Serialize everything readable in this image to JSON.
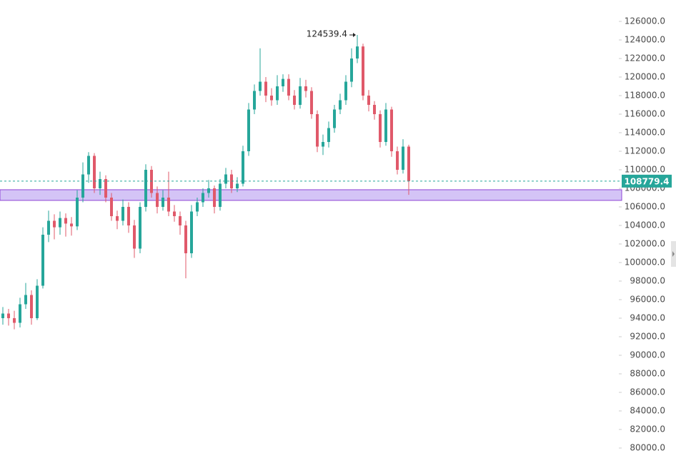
{
  "chart_data": {
    "type": "candlestick",
    "up_color": "#26a69a",
    "down_color": "#e0596a",
    "ylim": [
      78385,
      128308
    ],
    "yticks": [
      {
        "value": 126000,
        "label": "126000.0"
      },
      {
        "value": 124000,
        "label": "124000.0"
      },
      {
        "value": 122000,
        "label": "122000.0"
      },
      {
        "value": 120000,
        "label": "120000.0"
      },
      {
        "value": 118000,
        "label": "118000.0"
      },
      {
        "value": 116000,
        "label": "116000.0"
      },
      {
        "value": 114000,
        "label": "114000.0"
      },
      {
        "value": 112000,
        "label": "112000.0"
      },
      {
        "value": 110000,
        "label": "110000.0"
      },
      {
        "value": 108000,
        "label": "108000.0"
      },
      {
        "value": 106000,
        "label": "106000.0"
      },
      {
        "value": 104000,
        "label": "104000.0"
      },
      {
        "value": 102000,
        "label": "102000.0"
      },
      {
        "value": 100000,
        "label": "100000.0"
      },
      {
        "value": 98000,
        "label": "98000.0"
      },
      {
        "value": 96000,
        "label": "96000.0"
      },
      {
        "value": 94000,
        "label": "94000.0"
      },
      {
        "value": 92000,
        "label": "92000.0"
      },
      {
        "value": 90000,
        "label": "90000.0"
      },
      {
        "value": 88000,
        "label": "88000.0"
      },
      {
        "value": 86000,
        "label": "86000.0"
      },
      {
        "value": 84000,
        "label": "84000.0"
      },
      {
        "value": 82000,
        "label": "82000.0"
      },
      {
        "value": 80000,
        "label": "80000.0"
      }
    ],
    "zones": [
      {
        "low": 106700,
        "high": 107850,
        "color": "#d4c4f6",
        "border": "#8e44d6"
      }
    ],
    "candles": [
      [
        94000,
        95200,
        93300,
        94500
      ],
      [
        94500,
        95000,
        93200,
        94000
      ],
      [
        94000,
        94800,
        92800,
        93500
      ],
      [
        93500,
        96200,
        93000,
        95500
      ],
      [
        95500,
        97800,
        95000,
        96500
      ],
      [
        96500,
        97000,
        93300,
        94000
      ],
      [
        94000,
        98200,
        93800,
        97500
      ],
      [
        97500,
        103800,
        97200,
        103000
      ],
      [
        103000,
        105600,
        102200,
        104500
      ],
      [
        104500,
        105200,
        102500,
        103800
      ],
      [
        103800,
        105500,
        103000,
        104800
      ],
      [
        104800,
        105300,
        102800,
        104200
      ],
      [
        104200,
        104900,
        102900,
        103900
      ],
      [
        103900,
        107800,
        103500,
        107000
      ],
      [
        107000,
        110800,
        106500,
        109500
      ],
      [
        109500,
        111900,
        108600,
        111500
      ],
      [
        111500,
        111800,
        107500,
        108000
      ],
      [
        108000,
        109800,
        107300,
        109000
      ],
      [
        109000,
        109400,
        106500,
        107000
      ],
      [
        107000,
        107500,
        104500,
        105000
      ],
      [
        105000,
        105600,
        103600,
        104500
      ],
      [
        104500,
        106800,
        104000,
        106000
      ],
      [
        106000,
        106500,
        103200,
        104000
      ],
      [
        104000,
        104600,
        100500,
        101500
      ],
      [
        101500,
        106500,
        101000,
        106000
      ],
      [
        106000,
        110600,
        105500,
        110000
      ],
      [
        110000,
        110400,
        107000,
        107500
      ],
      [
        107500,
        108200,
        105300,
        106000
      ],
      [
        106000,
        107800,
        105600,
        107000
      ],
      [
        107000,
        109800,
        105000,
        105500
      ],
      [
        105500,
        106200,
        104400,
        105000
      ],
      [
        105000,
        105500,
        103000,
        104000
      ],
      [
        104000,
        104500,
        98300,
        101000
      ],
      [
        101000,
        106200,
        100500,
        105500
      ],
      [
        105500,
        107000,
        105000,
        106500
      ],
      [
        106500,
        108000,
        106000,
        107500
      ],
      [
        107500,
        108900,
        107000,
        108000
      ],
      [
        108000,
        108300,
        105300,
        106000
      ],
      [
        106000,
        109000,
        105600,
        108500
      ],
      [
        108500,
        110200,
        108000,
        109500
      ],
      [
        109500,
        110000,
        107500,
        108000
      ],
      [
        108000,
        109200,
        107600,
        108500
      ],
      [
        108500,
        112600,
        108200,
        112000
      ],
      [
        112000,
        117200,
        111500,
        116500
      ],
      [
        116500,
        119200,
        116000,
        118500
      ],
      [
        118500,
        123100,
        118000,
        119500
      ],
      [
        119500,
        120000,
        117300,
        118000
      ],
      [
        118000,
        118800,
        116900,
        117500
      ],
      [
        117500,
        120200,
        117000,
        119000
      ],
      [
        119000,
        120300,
        118400,
        119800
      ],
      [
        119800,
        120300,
        117500,
        118000
      ],
      [
        118000,
        118600,
        116500,
        117000
      ],
      [
        117000,
        119900,
        116600,
        119000
      ],
      [
        119000,
        119700,
        117800,
        118500
      ],
      [
        118500,
        118900,
        115500,
        116000
      ],
      [
        116000,
        116400,
        111900,
        112500
      ],
      [
        112500,
        113800,
        111600,
        113000
      ],
      [
        113000,
        115200,
        112400,
        114500
      ],
      [
        114500,
        117000,
        114000,
        116500
      ],
      [
        116500,
        118200,
        116000,
        117500
      ],
      [
        117500,
        120200,
        117000,
        119500
      ],
      [
        119500,
        123100,
        118900,
        122000
      ],
      [
        122000,
        124539.4,
        121500,
        123300
      ],
      [
        123300,
        123600,
        117500,
        118000
      ],
      [
        118000,
        118600,
        116300,
        117000
      ],
      [
        117000,
        117400,
        115400,
        116000
      ],
      [
        116000,
        116400,
        112400,
        113000
      ],
      [
        113000,
        117200,
        112600,
        116500
      ],
      [
        116500,
        116800,
        111400,
        112000
      ],
      [
        112000,
        112500,
        109500,
        110000
      ],
      [
        110000,
        113300,
        109600,
        112500
      ],
      [
        112500,
        112700,
        107300,
        108779.4
      ]
    ]
  }
}
